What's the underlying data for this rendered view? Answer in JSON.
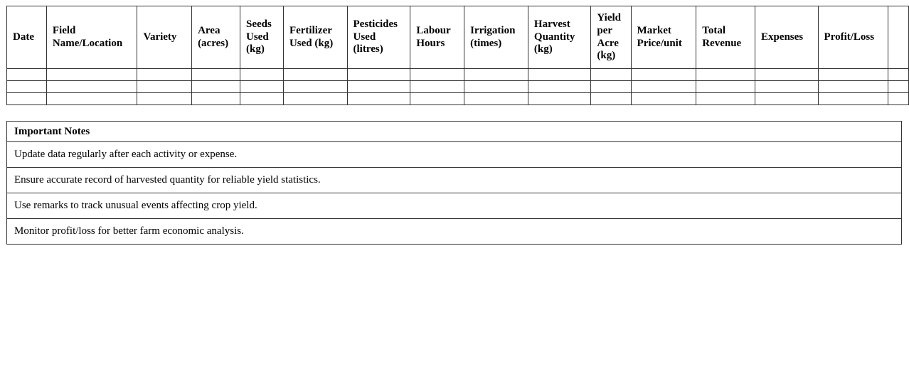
{
  "colors": {
    "border": "#333333",
    "text": "#000000",
    "background": "#ffffff"
  },
  "record_table": {
    "columns": [
      "Date",
      "Field Name/Location",
      "Variety",
      "Area (acres)",
      "Seeds Used (kg)",
      "Fertilizer Used (kg)",
      "Pesticides Used (litres)",
      "Labour Hours",
      "Irrigation (times)",
      "Harvest Quantity (kg)",
      "Yield per Acre (kg)",
      "Market Price/unit",
      "Total Revenue",
      "Expenses",
      "Profit/Loss"
    ],
    "empty_rows": 3
  },
  "notes": {
    "title": "Important Notes",
    "items": [
      "Update data regularly after each activity or expense.",
      "Ensure accurate record of harvested quantity for reliable yield statistics.",
      "Use remarks to track unusual events affecting crop yield.",
      "Monitor profit/loss for better farm economic analysis."
    ]
  }
}
